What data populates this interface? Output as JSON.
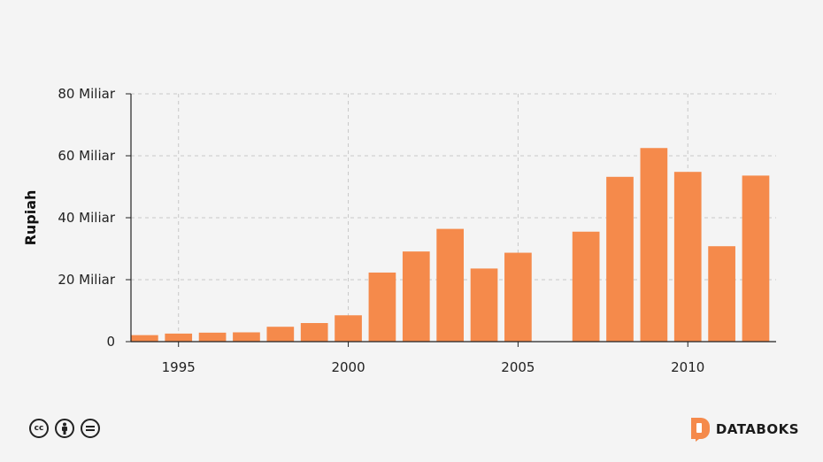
{
  "chart_data": {
    "type": "bar",
    "ylabel": "Rupiah",
    "ylim": [
      0,
      80
    ],
    "y_ticks": [
      {
        "value": 0,
        "label": "0"
      },
      {
        "value": 20,
        "label": "20 Miliar"
      },
      {
        "value": 40,
        "label": "40 Miliar"
      },
      {
        "value": 60,
        "label": "60 Miliar"
      },
      {
        "value": 80,
        "label": "80 Miliar"
      }
    ],
    "x_ticks": [
      {
        "value": 1995,
        "label": "1995"
      },
      {
        "value": 2000,
        "label": "2000"
      },
      {
        "value": 2005,
        "label": "2005"
      },
      {
        "value": 2010,
        "label": "2010"
      }
    ],
    "xlim": [
      1993.6,
      2012.6
    ],
    "grid": true,
    "bar_color": "#f58a4b",
    "data": [
      {
        "x": 1994,
        "y": 2.1
      },
      {
        "x": 1995,
        "y": 2.6
      },
      {
        "x": 1996,
        "y": 2.9
      },
      {
        "x": 1997,
        "y": 3.0
      },
      {
        "x": 1998,
        "y": 4.8
      },
      {
        "x": 1999,
        "y": 6.0
      },
      {
        "x": 2000,
        "y": 8.5
      },
      {
        "x": 2001,
        "y": 22.3
      },
      {
        "x": 2002,
        "y": 29.1
      },
      {
        "x": 2003,
        "y": 36.4
      },
      {
        "x": 2004,
        "y": 23.6
      },
      {
        "x": 2005,
        "y": 28.7
      },
      {
        "x": 2007,
        "y": 35.5
      },
      {
        "x": 2008,
        "y": 53.2
      },
      {
        "x": 2009,
        "y": 62.5
      },
      {
        "x": 2010,
        "y": 54.8
      },
      {
        "x": 2011,
        "y": 30.8
      },
      {
        "x": 2012,
        "y": 53.6
      }
    ]
  },
  "footer": {
    "license_icons": [
      "cc-icon",
      "by-icon",
      "nd-icon"
    ],
    "brand": "DATABOKS",
    "brand_color": "#f58a4b"
  }
}
